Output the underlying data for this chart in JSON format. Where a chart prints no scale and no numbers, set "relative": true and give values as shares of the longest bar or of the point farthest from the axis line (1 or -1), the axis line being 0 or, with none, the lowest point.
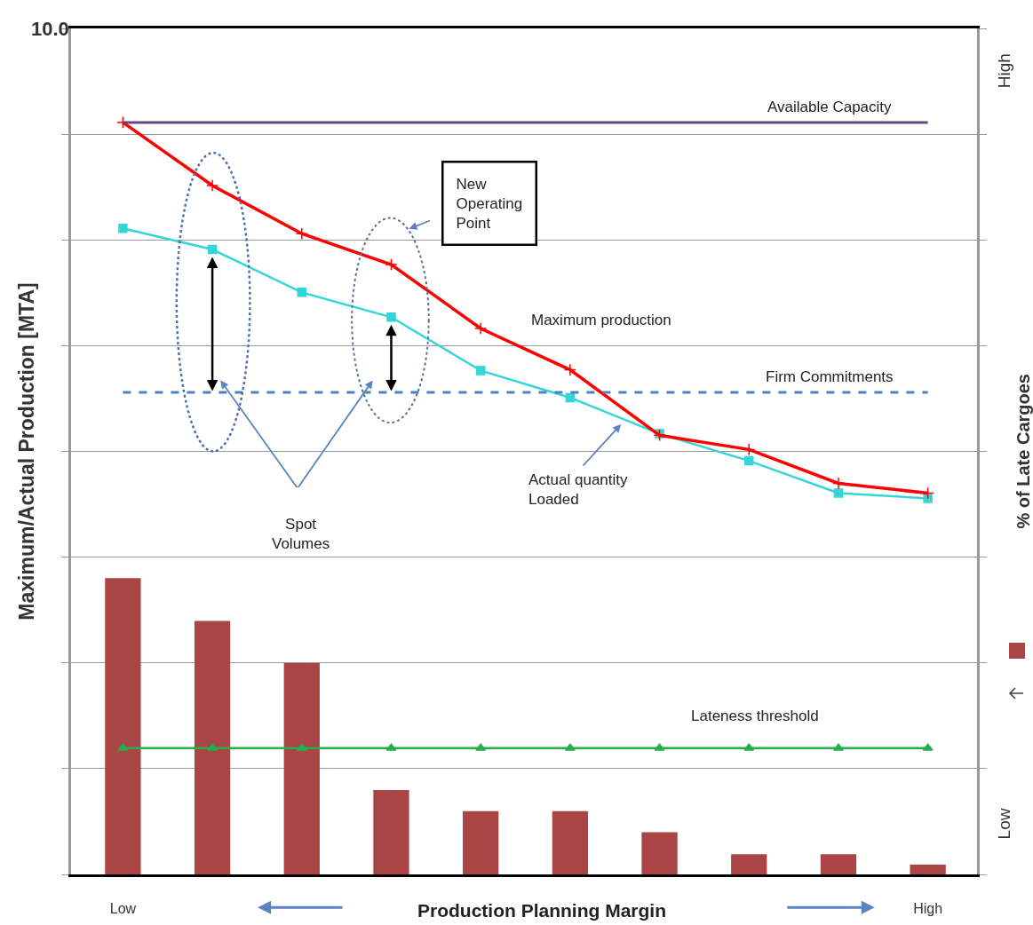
{
  "chart_data": {
    "type": "line",
    "relative": true,
    "xlabel": "Production Planning Margin",
    "ylabel": "Maximum/Actual Production [MTA]",
    "y2label": "% of Late Cargoes",
    "grid": "y",
    "legend": false,
    "categories": [
      "Low",
      null,
      null,
      null,
      null,
      null,
      null,
      null,
      null,
      "High"
    ],
    "series": [
      {
        "type": "bar",
        "color": "#a94545",
        "values": [
          0.394,
          0.337,
          0.281,
          0.112,
          0.084,
          0.084,
          0.056,
          0.027,
          0.027,
          0.013
        ]
      },
      {
        "name": "Lateness threshold",
        "color": "#22b04c",
        "marker": "triangle",
        "values": [
          0.168,
          0.168,
          0.168,
          0.168,
          0.168,
          0.168,
          0.168,
          0.168,
          0.168,
          0.168
        ]
      },
      {
        "name": "Actual quantity Loaded",
        "color": "#33d6d6",
        "marker": "square",
        "values": [
          0.859,
          0.831,
          0.774,
          0.741,
          0.67,
          0.634,
          0.586,
          0.55,
          0.507,
          0.5
        ]
      },
      {
        "name": "Maximum production",
        "color": "#ff0000",
        "marker": "cross",
        "values": [
          1,
          0.916,
          0.852,
          0.811,
          0.726,
          0.671,
          0.584,
          0.565,
          0.52,
          0.507
        ]
      }
    ],
    "ref_lines": [
      {
        "axis": "y",
        "value": 1,
        "label": "Available Capacity",
        "color": "#604a7b",
        "line_style": "solid"
      },
      {
        "axis": "y",
        "value": 0.641,
        "label": "Firm Commitments",
        "color": "#4f81bd",
        "line_style": "dashed"
      }
    ],
    "annotations": [
      "10.0",
      "High",
      "Low",
      "New Operating Point",
      "Spot Volumes"
    ]
  }
}
